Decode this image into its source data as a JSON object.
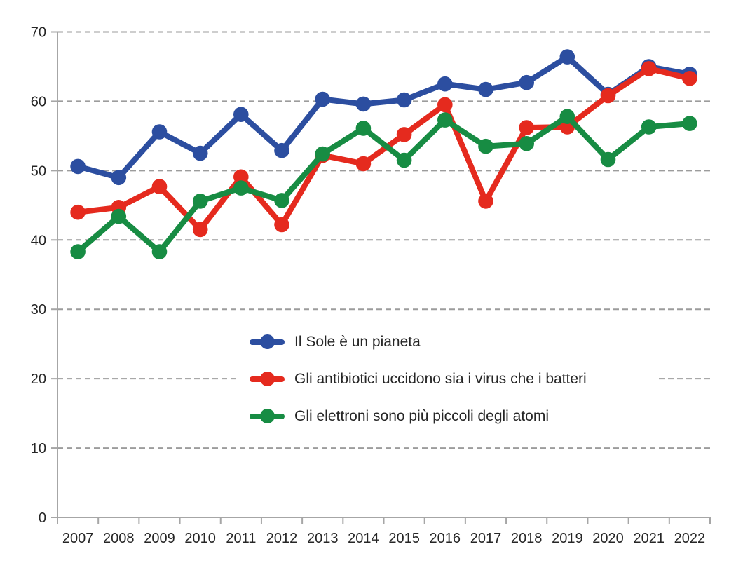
{
  "chart_data": {
    "type": "line",
    "title": "",
    "xlabel": "",
    "ylabel": "",
    "x": [
      "2007",
      "2008",
      "2009",
      "2010",
      "2011",
      "2012",
      "2013",
      "2014",
      "2015",
      "2016",
      "2017",
      "2018",
      "2019",
      "2020",
      "2021",
      "2022"
    ],
    "yticks": [
      0,
      10,
      20,
      30,
      40,
      50,
      60,
      70
    ],
    "ylim": [
      0,
      70
    ],
    "grid": "horizontal-dashed",
    "legend_position": "inside-center",
    "series": [
      {
        "name": "Il Sole è un pianeta",
        "color": "#2C4EA0",
        "marker": "circle",
        "values": [
          50.6,
          49.0,
          55.6,
          52.5,
          58.1,
          52.9,
          60.3,
          59.6,
          60.2,
          62.5,
          61.7,
          62.7,
          66.4,
          61.0,
          65.0,
          63.9
        ]
      },
      {
        "name": "Gli antibiotici uccidono sia i virus che i batteri",
        "color": "#E52A1E",
        "marker": "circle",
        "values": [
          44.0,
          44.7,
          47.7,
          41.5,
          49.1,
          42.2,
          52.2,
          51.0,
          55.2,
          59.5,
          45.6,
          56.2,
          56.3,
          60.8,
          64.7,
          63.3
        ]
      },
      {
        "name": "Gli elettroni sono più piccoli degli atomi",
        "color": "#178C43",
        "marker": "circle",
        "values": [
          38.3,
          43.4,
          38.3,
          45.6,
          47.5,
          45.7,
          52.4,
          56.1,
          51.5,
          57.3,
          53.5,
          53.9,
          57.8,
          51.6,
          56.3,
          56.8
        ]
      }
    ]
  },
  "colors": {
    "grid": "#9C9C9C",
    "axis": "#A6A6A6",
    "tick_text": "#262626",
    "legend_bg": "#FFFFFF"
  }
}
